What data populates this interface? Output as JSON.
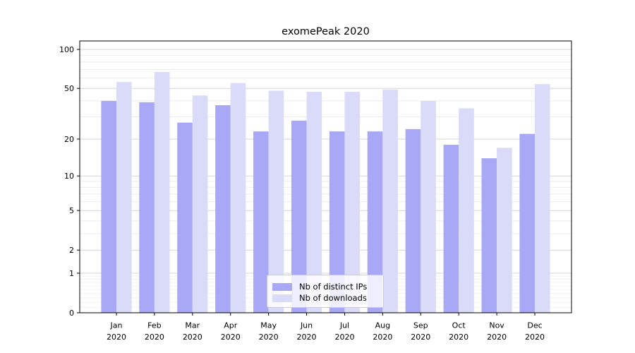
{
  "title": "exomePeak 2020",
  "chart_data": {
    "type": "bar",
    "title": "exomePeak 2020",
    "scale": "log1p",
    "categories": [
      "Jan",
      "Feb",
      "Mar",
      "Apr",
      "May",
      "Jun",
      "Jul",
      "Aug",
      "Sep",
      "Oct",
      "Nov",
      "Dec"
    ],
    "year": "2020",
    "series": [
      {
        "name": "Nb of distinct IPs",
        "color": "#a8a8f7",
        "values": [
          40,
          39,
          27,
          37,
          23,
          28,
          23,
          23,
          24,
          18,
          14,
          22
        ]
      },
      {
        "name": "Nb of downloads",
        "color": "#dadaf9",
        "values": [
          56,
          67,
          44,
          55,
          48,
          47,
          47,
          49,
          40,
          35,
          17,
          54
        ]
      }
    ],
    "yticks": [
      100,
      50,
      20,
      10,
      5,
      2,
      1,
      0
    ],
    "ylim": [
      0,
      116
    ],
    "grid": true,
    "legend_position": "bottom-center",
    "colors": {
      "major_grid": "#d6d6d6",
      "minor_grid": "#ececec",
      "sub1_grid": "#f2f2f2",
      "spine": "#000000",
      "text": "#000000"
    }
  }
}
